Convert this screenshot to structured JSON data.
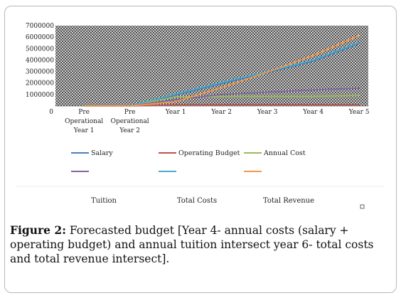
{
  "chart_data": {
    "type": "line",
    "categories": [
      "Pre Operational Year 1",
      "Pre Operational Year 2",
      "Year 1",
      "Year 2",
      "Year 3",
      "Year 4",
      "Year 5"
    ],
    "category_lines": [
      [
        "Pre",
        "Operational",
        "Year 1"
      ],
      [
        "Pre",
        "Operational",
        "Year 2"
      ],
      [
        "Year 1"
      ],
      [
        "Year 2"
      ],
      [
        "Year 3"
      ],
      [
        "Year 4"
      ],
      [
        "Year 5"
      ]
    ],
    "y_ticks": [
      "0",
      "1000000",
      "2000000",
      "3000000",
      "4000000",
      "5000000",
      "6000000",
      "7000000"
    ],
    "ylim": [
      0,
      7000000
    ],
    "series": [
      {
        "name": "Salary",
        "color": "#4a7ebb",
        "values": [
          0,
          0,
          950000,
          1950000,
          2900000,
          3900000,
          5450000
        ]
      },
      {
        "name": "Operating Budget",
        "color": "#c0504d",
        "values": [
          0,
          0,
          90000,
          100000,
          100000,
          100000,
          100000
        ]
      },
      {
        "name": "Annual Cost",
        "color": "#9bbb59",
        "values": [
          0,
          0,
          800000,
          850000,
          850000,
          850000,
          900000
        ]
      },
      {
        "name": "",
        "color": "#8064a2",
        "values": [
          0,
          0,
          550000,
          1000000,
          1200000,
          1400000,
          1550000
        ]
      },
      {
        "name": "",
        "color": "#4bacc6",
        "values": [
          0,
          0,
          1050000,
          2050000,
          3000000,
          4000000,
          5550000
        ]
      },
      {
        "name": "",
        "color": "#f79646",
        "values": [
          0,
          0,
          380000,
          1600000,
          2950000,
          4400000,
          6150000
        ]
      }
    ],
    "bottom_labels": [
      "Tuition",
      "Total Costs",
      "Total Revenue"
    ]
  },
  "caption": {
    "label": "Figure 2:",
    "text": " Forecasted budget [Year 4- annual costs (salary + operating budget) and annual tuition intersect year 6- total costs and total revenue intersect]."
  }
}
